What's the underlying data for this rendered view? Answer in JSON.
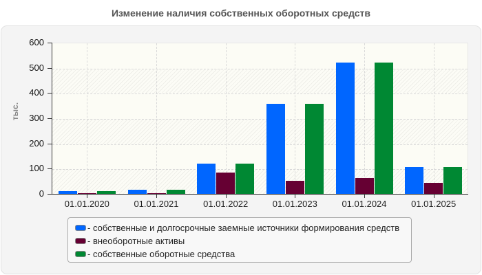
{
  "title": "Изменение наличия собственных оборотных средств",
  "y_unit_label": "тыс.",
  "colors": {
    "series1": "#0066ff",
    "series2": "#660033",
    "series3": "#008833"
  },
  "chart_data": {
    "type": "bar",
    "title": "Изменение наличия собственных оборотных средств",
    "xlabel": "",
    "ylabel": "тыс.",
    "ylim": [
      0,
      600
    ],
    "yticks": [
      0,
      100,
      200,
      300,
      400,
      500,
      600
    ],
    "grid": true,
    "legend_position": "bottom",
    "categories": [
      "01.01.2020",
      "01.01.2021",
      "01.01.2022",
      "01.01.2023",
      "01.01.2024",
      "01.01.2025"
    ],
    "series": [
      {
        "name": "- собственные и долгосрочные заемные источники формирования средств",
        "color": "#0066ff",
        "values": [
          11,
          17,
          120,
          357,
          520,
          107
        ]
      },
      {
        "name": "- внеоборотные активы",
        "color": "#660033",
        "values": [
          3,
          3,
          85,
          52,
          63,
          44
        ]
      },
      {
        "name": "- собственные оборотные средства",
        "color": "#008833",
        "values": [
          11,
          17,
          120,
          357,
          520,
          107
        ]
      }
    ]
  },
  "yticks_labels": [
    "0",
    "100",
    "200",
    "300",
    "400",
    "500",
    "600"
  ],
  "legend": [
    "- собственные и долгосрочные заемные источники формирования средств",
    "- внеоборотные активы",
    "- собственные оборотные средства"
  ]
}
